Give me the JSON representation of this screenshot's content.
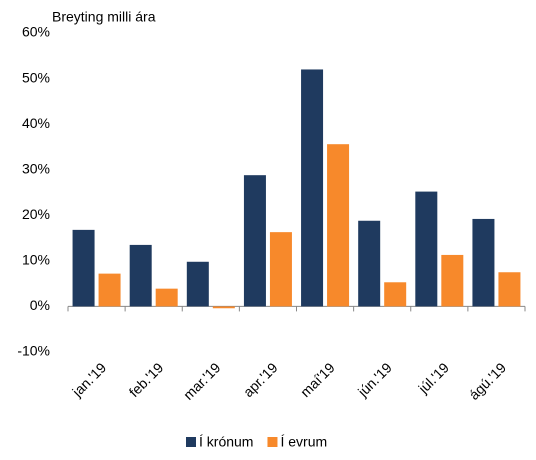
{
  "chart_data": {
    "type": "bar",
    "title": "Breyting milli ára",
    "categories": [
      "jan.'19",
      "feb.'19",
      "mar.'19",
      "apr.'19",
      "maí'19",
      "jún.'19",
      "júl.'19",
      "ágú.'19"
    ],
    "series": [
      {
        "name": "Í krónum",
        "color": "#1f3a5f",
        "values": [
          16.8,
          13.5,
          9.8,
          28.8,
          52.0,
          18.8,
          25.2,
          19.2
        ]
      },
      {
        "name": "Í evrum",
        "color": "#f7892b",
        "values": [
          7.2,
          3.9,
          -0.4,
          16.3,
          35.6,
          5.3,
          11.3,
          7.5
        ]
      }
    ],
    "ylim": [
      -10,
      60
    ],
    "yticks": [
      {
        "value": -10,
        "label": "-10%"
      },
      {
        "value": 0,
        "label": "0%"
      },
      {
        "value": 10,
        "label": "10%"
      },
      {
        "value": 20,
        "label": "20%"
      },
      {
        "value": 30,
        "label": "30%"
      },
      {
        "value": 40,
        "label": "40%"
      },
      {
        "value": 50,
        "label": "50%"
      },
      {
        "value": 60,
        "label": "60%"
      }
    ],
    "grid": false,
    "legend": "bottom"
  }
}
